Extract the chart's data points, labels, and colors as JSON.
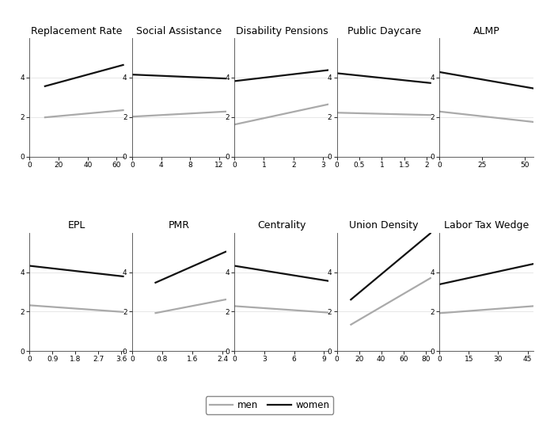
{
  "panels": [
    {
      "title": "Replacement Rate",
      "xlim": [
        0,
        65
      ],
      "xticks": [
        0,
        20,
        40,
        60
      ],
      "women": {
        "x": [
          10,
          65
        ],
        "y": [
          3.55,
          4.65
        ]
      },
      "men": {
        "x": [
          10,
          65
        ],
        "y": [
          1.98,
          2.35
        ]
      }
    },
    {
      "title": "Social Assistance",
      "xlim": [
        0,
        13
      ],
      "xticks": [
        0,
        4,
        8,
        12
      ],
      "women": {
        "x": [
          0,
          13
        ],
        "y": [
          4.15,
          3.95
        ]
      },
      "men": {
        "x": [
          0,
          13
        ],
        "y": [
          2.02,
          2.28
        ]
      }
    },
    {
      "title": "Disability Pensions",
      "xlim": [
        0,
        3.2
      ],
      "xticks": [
        0,
        1,
        2,
        3
      ],
      "women": {
        "x": [
          0,
          3.2
        ],
        "y": [
          3.82,
          4.38
        ]
      },
      "men": {
        "x": [
          0,
          3.2
        ],
        "y": [
          1.62,
          2.65
        ]
      }
    },
    {
      "title": "Public Daycare",
      "xlim": [
        0,
        2.1
      ],
      "xticks": [
        0,
        0.5,
        1,
        1.5,
        2
      ],
      "women": {
        "x": [
          0,
          2.1
        ],
        "y": [
          4.22,
          3.72
        ]
      },
      "men": {
        "x": [
          0,
          2.1
        ],
        "y": [
          2.22,
          2.1
        ]
      }
    },
    {
      "title": "ALMP",
      "xlim": [
        0,
        55
      ],
      "xticks": [
        0,
        25,
        50
      ],
      "women": {
        "x": [
          0,
          55
        ],
        "y": [
          4.28,
          3.45
        ]
      },
      "men": {
        "x": [
          0,
          55
        ],
        "y": [
          2.28,
          1.75
        ]
      }
    },
    {
      "title": "EPL",
      "xlim": [
        0,
        3.7
      ],
      "xticks": [
        0,
        0.9,
        1.8,
        2.7,
        3.6
      ],
      "women": {
        "x": [
          0,
          3.7
        ],
        "y": [
          4.32,
          3.78
        ]
      },
      "men": {
        "x": [
          0,
          3.7
        ],
        "y": [
          2.32,
          1.98
        ]
      }
    },
    {
      "title": "PMR",
      "xlim": [
        0,
        2.5
      ],
      "xticks": [
        0,
        0.8,
        1.6,
        2.4
      ],
      "women": {
        "x": [
          0.6,
          2.5
        ],
        "y": [
          3.45,
          5.05
        ]
      },
      "men": {
        "x": [
          0.6,
          2.5
        ],
        "y": [
          1.92,
          2.62
        ]
      }
    },
    {
      "title": "Centrality",
      "xlim": [
        0,
        9.5
      ],
      "xticks": [
        0,
        3,
        6,
        9
      ],
      "women": {
        "x": [
          0,
          9.5
        ],
        "y": [
          4.32,
          3.55
        ]
      },
      "men": {
        "x": [
          0,
          9.5
        ],
        "y": [
          2.28,
          1.95
        ]
      }
    },
    {
      "title": "Union Density",
      "xlim": [
        0,
        85
      ],
      "xticks": [
        0,
        20,
        40,
        60,
        80
      ],
      "women": {
        "x": [
          12,
          85
        ],
        "y": [
          2.58,
          6.0
        ]
      },
      "men": {
        "x": [
          12,
          85
        ],
        "y": [
          1.32,
          3.72
        ]
      }
    },
    {
      "title": "Labor Tax Wedge",
      "xlim": [
        0,
        48
      ],
      "xticks": [
        0,
        15,
        30,
        45
      ],
      "women": {
        "x": [
          0,
          48
        ],
        "y": [
          3.38,
          4.42
        ]
      },
      "men": {
        "x": [
          0,
          48
        ],
        "y": [
          1.92,
          2.28
        ]
      }
    }
  ],
  "ylim": [
    0,
    6
  ],
  "yticks": [
    0,
    2,
    4
  ],
  "women_color": "#111111",
  "men_color": "#aaaaaa",
  "line_width": 1.6,
  "title_fontsize": 9,
  "tick_fontsize": 6.5,
  "legend_fontsize": 8.5,
  "background_color": "#ffffff"
}
